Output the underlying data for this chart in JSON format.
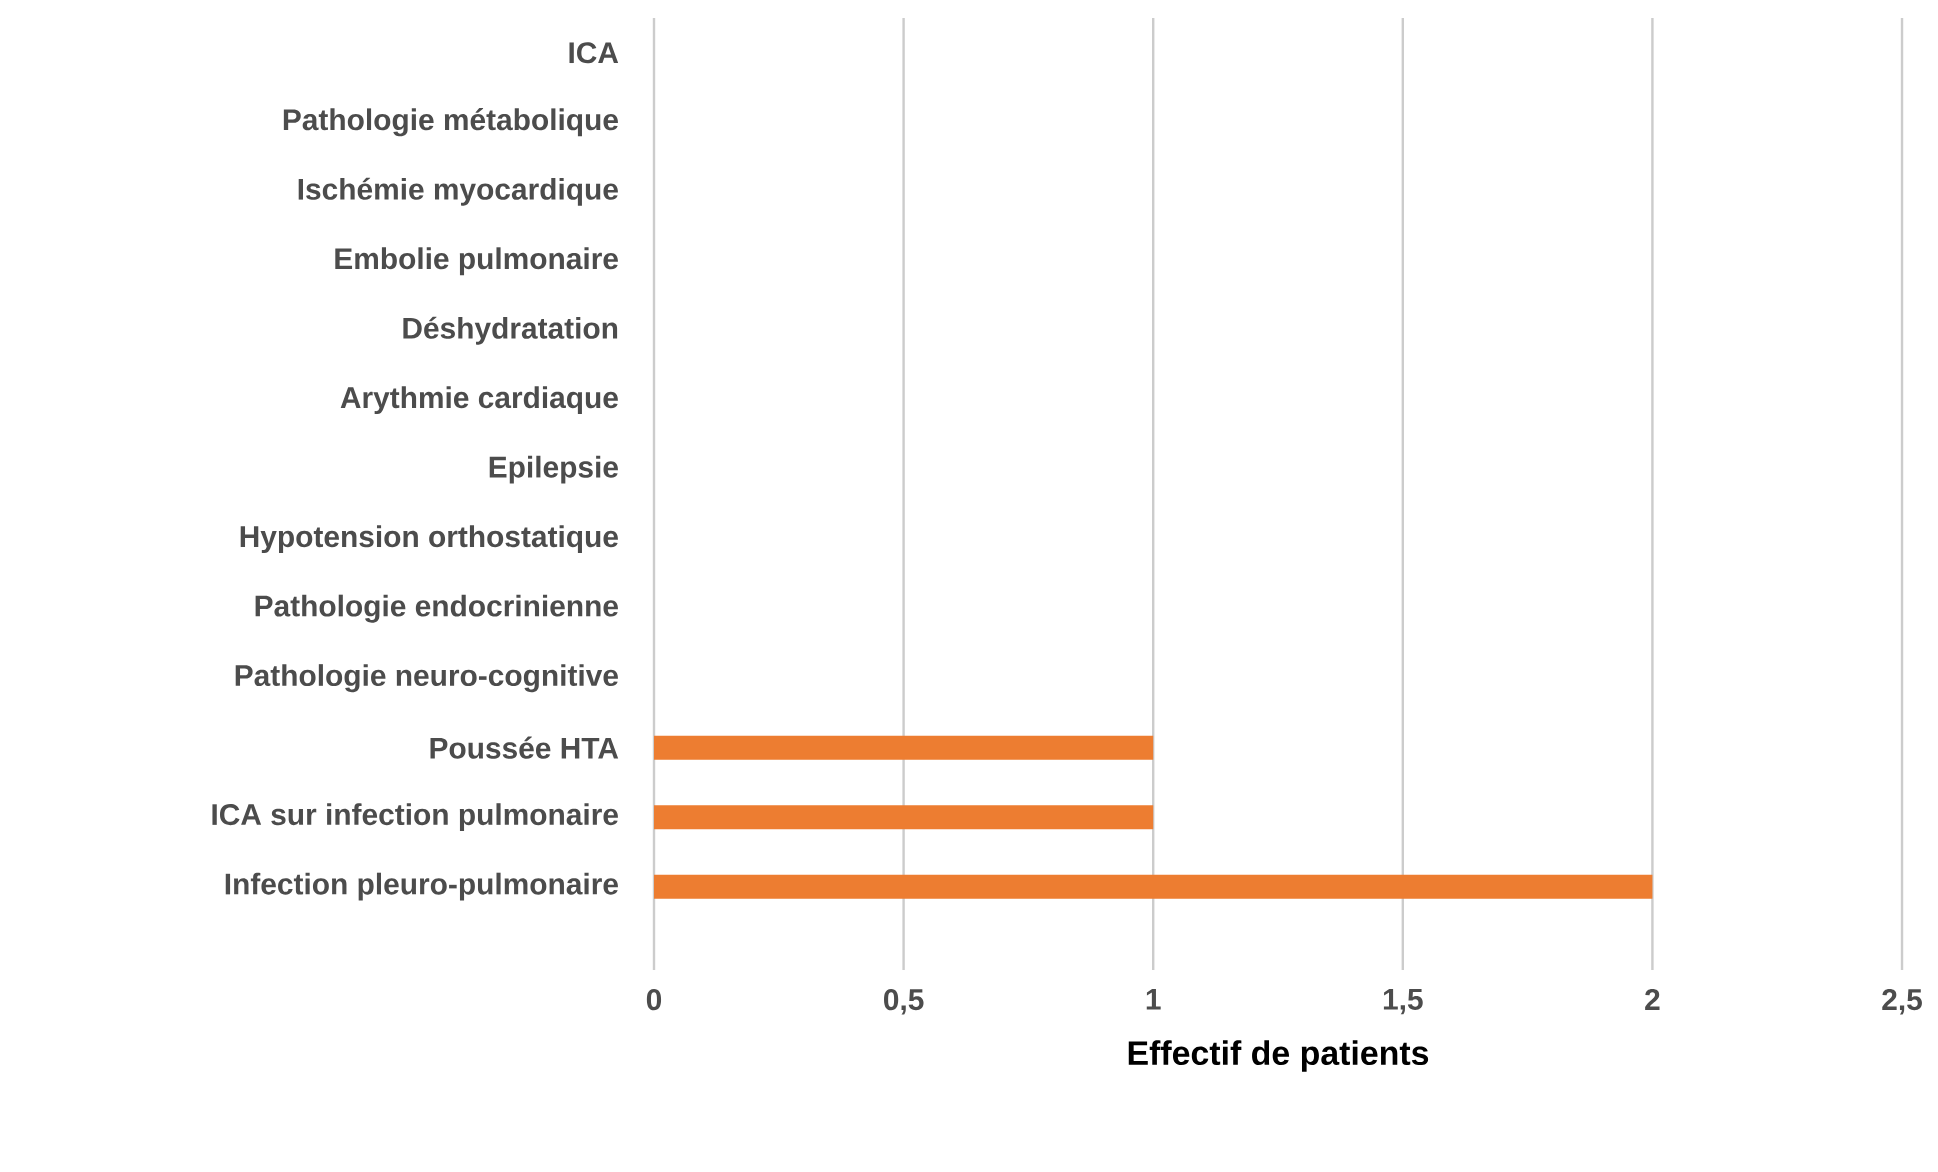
{
  "chart_data": {
    "type": "bar",
    "orientation": "horizontal",
    "xlabel": "Effectif de patients",
    "categories": [
      "ICA",
      "Pathologie métabolique",
      "Ischémie myocardique",
      "Embolie pulmonaire",
      "Déshydratation",
      "Arythmie cardiaque",
      "Epilepsie",
      "Hypotension orthostatique",
      "Pathologie endocrinienne",
      "Pathologie neuro-cognitive",
      "Poussée HTA",
      "ICA sur infection pulmonaire",
      "Infection pleuro-pulmonaire"
    ],
    "values": [
      0,
      0,
      0,
      0,
      0,
      0,
      0,
      0,
      0,
      0,
      1,
      1,
      2
    ],
    "color": "#ed7d31",
    "xlim": [
      0,
      2.5
    ],
    "xticks": [
      0,
      {
        "value": 0.5,
        "label": "0,5"
      },
      1,
      {
        "value": 1.5,
        "label": "1,5"
      },
      2,
      {
        "value": 2.5,
        "label": "2,5"
      }
    ],
    "grid": "x"
  }
}
